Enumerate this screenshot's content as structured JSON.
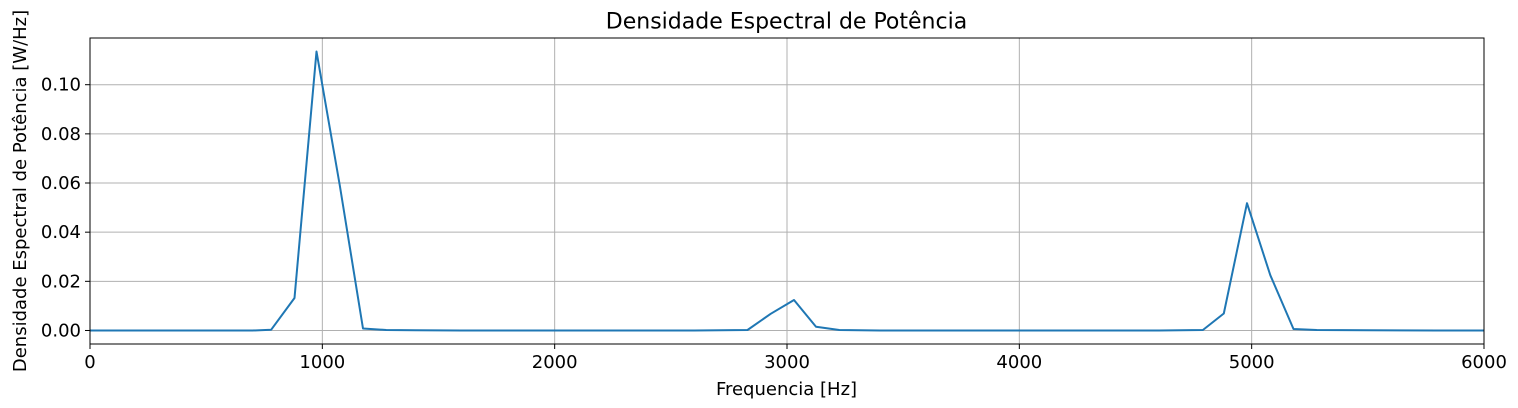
{
  "chart_data": {
    "type": "line",
    "title": "Densidade Espectral de Potência",
    "xlabel": "Frequencia [Hz]",
    "ylabel": "Densidade Espectral de Potência [W/Hz]",
    "xlim": [
      0,
      6000
    ],
    "ylim": [
      -0.0055,
      0.119
    ],
    "xticks": [
      0,
      1000,
      2000,
      3000,
      4000,
      5000,
      6000
    ],
    "xtick_labels": [
      "0",
      "1000",
      "2000",
      "3000",
      "4000",
      "5000",
      "6000"
    ],
    "yticks": [
      0.0,
      0.02,
      0.04,
      0.06,
      0.08,
      0.1
    ],
    "ytick_labels": [
      "0.00",
      "0.02",
      "0.04",
      "0.06",
      "0.08",
      "0.10"
    ],
    "grid": true,
    "line_color": "#1f77b4",
    "series": [
      {
        "x": [
          0,
          100,
          200,
          300,
          400,
          500,
          600,
          700,
          780,
          880,
          975,
          1075,
          1175,
          1275,
          1400,
          1600,
          1800,
          2000,
          2200,
          2400,
          2600,
          2830,
          2930,
          3030,
          3125,
          3225,
          3400,
          3600,
          3800,
          4000,
          4200,
          4400,
          4600,
          4790,
          4880,
          4980,
          5080,
          5180,
          5280,
          5500,
          5800,
          6000
        ],
        "y": [
          0,
          0,
          0,
          0,
          0,
          0,
          0,
          0,
          0.0003,
          0.0132,
          0.1135,
          0.059,
          0.0008,
          0.0002,
          0.0001,
          0,
          0,
          0,
          0,
          0,
          0,
          0.0002,
          0.0068,
          0.0124,
          0.0015,
          0.0002,
          0,
          0,
          0,
          0,
          0,
          0,
          0,
          0.0002,
          0.0069,
          0.0518,
          0.0225,
          0.0006,
          0.0002,
          0.0001,
          0,
          0
        ]
      }
    ]
  }
}
